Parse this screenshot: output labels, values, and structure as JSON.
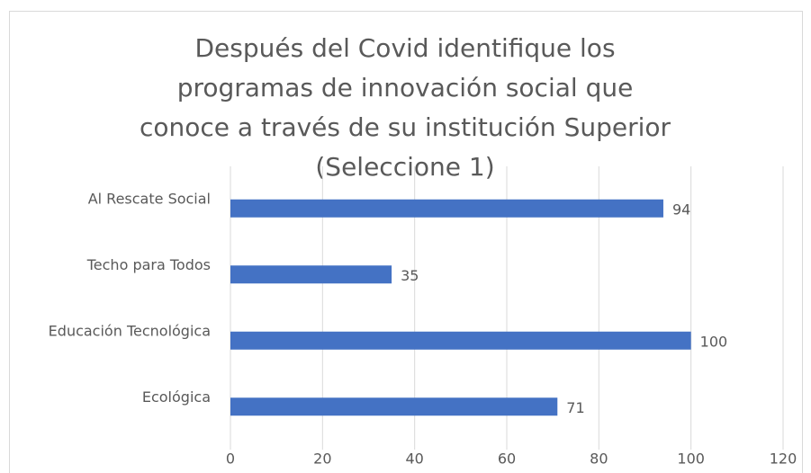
{
  "chart_data": {
    "type": "bar",
    "orientation": "horizontal",
    "title": "Después del Covid identifique los programas de innovación social que conoce a través de su institución Superior (Seleccione 1)",
    "categories": [
      "Al Rescate Social",
      "Techo para Todos",
      "Educación Tecnológica",
      "Ecológica"
    ],
    "values": [
      94,
      35,
      100,
      71
    ],
    "color": "#4472c4",
    "xlim": [
      0,
      120
    ],
    "xticks": [
      0,
      20,
      40,
      60,
      80,
      100,
      120
    ],
    "grid": true,
    "data_labels": true
  }
}
